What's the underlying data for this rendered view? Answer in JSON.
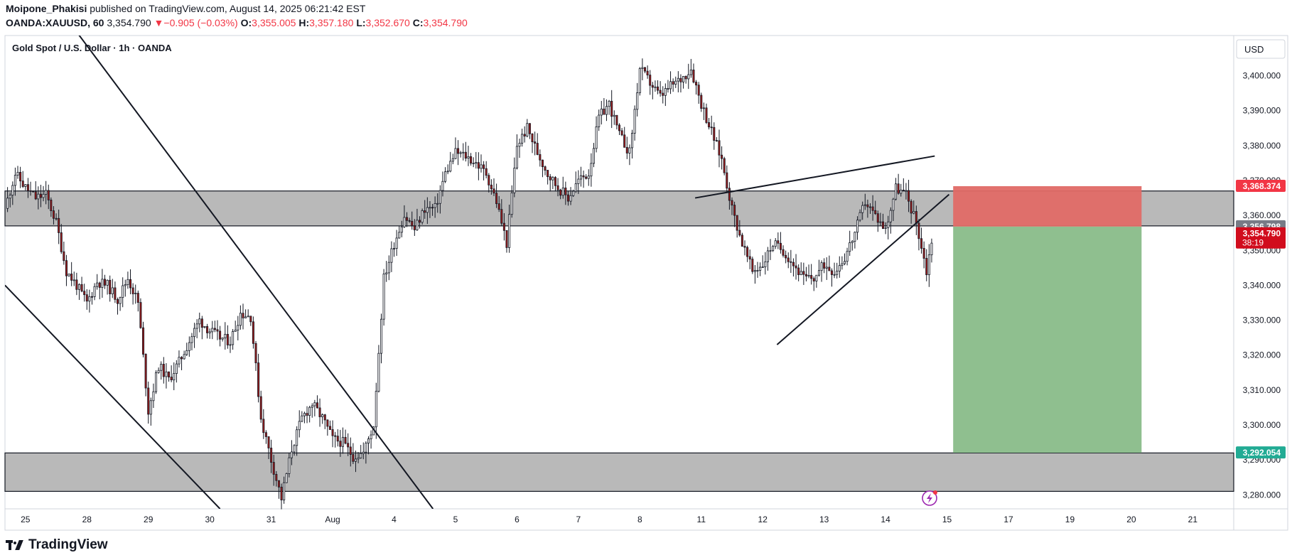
{
  "header": {
    "author": "Moipone_Phakisi",
    "published_text": "published on TradingView.com, August 14, 2025 06:21:42 EST",
    "symbol": "OANDA:XAUUSD, 60",
    "last": "3,354.790",
    "change": "−0.905 (−0.03%)",
    "o_label": "O:",
    "o": "3,355.005",
    "h_label": "H:",
    "h": "3,357.180",
    "l_label": "L:",
    "l": "3,352.670",
    "c_label": "C:",
    "c": "3,354.790"
  },
  "chart_data": {
    "type": "candlestick",
    "title": "Gold Spot / U.S. Dollar · 1h · OANDA",
    "currency": "USD",
    "y_ticks": [
      3280,
      3290,
      3300,
      3310,
      3320,
      3330,
      3340,
      3350,
      3360,
      3370,
      3380,
      3390,
      3400
    ],
    "y_tick_labels": [
      "3,280.000",
      "3,290.000",
      "3,300.000",
      "3,310.000",
      "3,320.000",
      "3,330.000",
      "3,340.000",
      "3,350.000",
      "3,360.000",
      "3,370.000",
      "3,380.000",
      "3,390.000",
      "3,400.000"
    ],
    "ylim": [
      3276,
      3411.5
    ],
    "x_ticks": [
      "25",
      "28",
      "29",
      "30",
      "31",
      "Aug",
      "4",
      "5",
      "6",
      "7",
      "8",
      "11",
      "12",
      "13",
      "14",
      "15",
      "17",
      "19",
      "20",
      "21"
    ],
    "x_tick_index": [
      1,
      4,
      7,
      10,
      13,
      16,
      19,
      22,
      25,
      28,
      31,
      34,
      37,
      40,
      43,
      46,
      49,
      52,
      55,
      58
    ],
    "x_index_range": [
      0,
      60
    ],
    "last_data_index": 45.3,
    "price_path": [
      [
        0,
        3362
      ],
      [
        0.5,
        3372
      ],
      [
        1,
        3368
      ],
      [
        1.5,
        3365
      ],
      [
        2,
        3366
      ],
      [
        2.5,
        3358
      ],
      [
        3,
        3344
      ],
      [
        3.5,
        3340
      ],
      [
        4,
        3335
      ],
      [
        4.5,
        3341
      ],
      [
        5,
        3340
      ],
      [
        5.5,
        3336
      ],
      [
        6,
        3342
      ],
      [
        6.5,
        3335
      ],
      [
        7,
        3304
      ],
      [
        7.5,
        3317
      ],
      [
        8,
        3313
      ],
      [
        8.5,
        3318
      ],
      [
        9,
        3324
      ],
      [
        9.5,
        3330
      ],
      [
        10,
        3327
      ],
      [
        10.5,
        3325
      ],
      [
        11,
        3324
      ],
      [
        11.5,
        3332
      ],
      [
        12,
        3331
      ],
      [
        12.5,
        3302
      ],
      [
        13,
        3290
      ],
      [
        13.5,
        3279
      ],
      [
        14,
        3293
      ],
      [
        14.5,
        3302
      ],
      [
        15,
        3306
      ],
      [
        15.5,
        3302
      ],
      [
        16,
        3296
      ],
      [
        16.5,
        3295
      ],
      [
        17,
        3291
      ],
      [
        17.5,
        3292
      ],
      [
        18,
        3300
      ],
      [
        18.5,
        3342
      ],
      [
        19,
        3352
      ],
      [
        19.5,
        3360
      ],
      [
        20,
        3356
      ],
      [
        20.5,
        3362
      ],
      [
        21,
        3362
      ],
      [
        21.5,
        3372
      ],
      [
        22,
        3378
      ],
      [
        22.5,
        3377
      ],
      [
        23,
        3375
      ],
      [
        23.5,
        3372
      ],
      [
        24,
        3364
      ],
      [
        24.5,
        3352
      ],
      [
        25,
        3380
      ],
      [
        25.5,
        3385
      ],
      [
        26,
        3378
      ],
      [
        26.5,
        3372
      ],
      [
        27,
        3368
      ],
      [
        27.5,
        3365
      ],
      [
        28,
        3370
      ],
      [
        28.5,
        3372
      ],
      [
        29,
        3388
      ],
      [
        29.5,
        3392
      ],
      [
        30,
        3383
      ],
      [
        30.5,
        3378
      ],
      [
        31,
        3402
      ],
      [
        31.5,
        3398
      ],
      [
        32,
        3394
      ],
      [
        32.5,
        3397
      ],
      [
        33,
        3399
      ],
      [
        33.5,
        3402
      ],
      [
        34,
        3392
      ],
      [
        34.5,
        3384
      ],
      [
        35,
        3376
      ],
      [
        35.5,
        3362
      ],
      [
        36,
        3352
      ],
      [
        36.5,
        3344
      ],
      [
        37,
        3346
      ],
      [
        37.5,
        3352
      ],
      [
        38,
        3350
      ],
      [
        38.5,
        3346
      ],
      [
        39,
        3342
      ],
      [
        39.5,
        3342
      ],
      [
        40,
        3346
      ],
      [
        40.5,
        3344
      ],
      [
        41,
        3348
      ],
      [
        41.5,
        3355
      ],
      [
        42,
        3364
      ],
      [
        42.5,
        3360
      ],
      [
        43,
        3356
      ],
      [
        43.5,
        3368
      ],
      [
        44,
        3366
      ],
      [
        44.5,
        3358
      ],
      [
        45,
        3344
      ],
      [
        45.3,
        3354.79
      ]
    ],
    "zones": [
      {
        "from": 3357,
        "to": 3367
      },
      {
        "from": 3281,
        "to": 3292
      }
    ],
    "trendlines": [
      {
        "x1": 0,
        "y1": 3440,
        "x2": 20.9,
        "y2": 3276
      },
      {
        "x1": 0,
        "y1": 3340,
        "x2": 10.5,
        "y2": 3276
      },
      {
        "x1": 33.7,
        "y1": 3365,
        "x2": 45.4,
        "y2": 3377
      },
      {
        "x1": 37.7,
        "y1": 3323,
        "x2": 46.1,
        "y2": 3366
      }
    ],
    "position": {
      "start_index": 46.3,
      "end_index": 55.5,
      "stop": 3368.374,
      "entry": 3356.798,
      "target": 3292.054
    },
    "price_labels": [
      {
        "value": 3368.374,
        "text": "3,368.374",
        "color": "#f23645"
      },
      {
        "value": 3356.798,
        "text": "3,356.798",
        "color": "#787b86"
      },
      {
        "value": 3354.79,
        "text": "3,354.790",
        "sub": "38:19",
        "color": "#d10c1d"
      },
      {
        "value": 3292.054,
        "text": "3,292.054",
        "color": "#22ab94"
      }
    ],
    "colors": {
      "up": "#ffffff",
      "down": "#9e1b1b",
      "wick": "#131722",
      "zone": "#b9b9b9",
      "stop_zone": "#e06a66",
      "target_zone": "#8fbf8f"
    }
  },
  "footer": {
    "brand": "TradingView"
  }
}
